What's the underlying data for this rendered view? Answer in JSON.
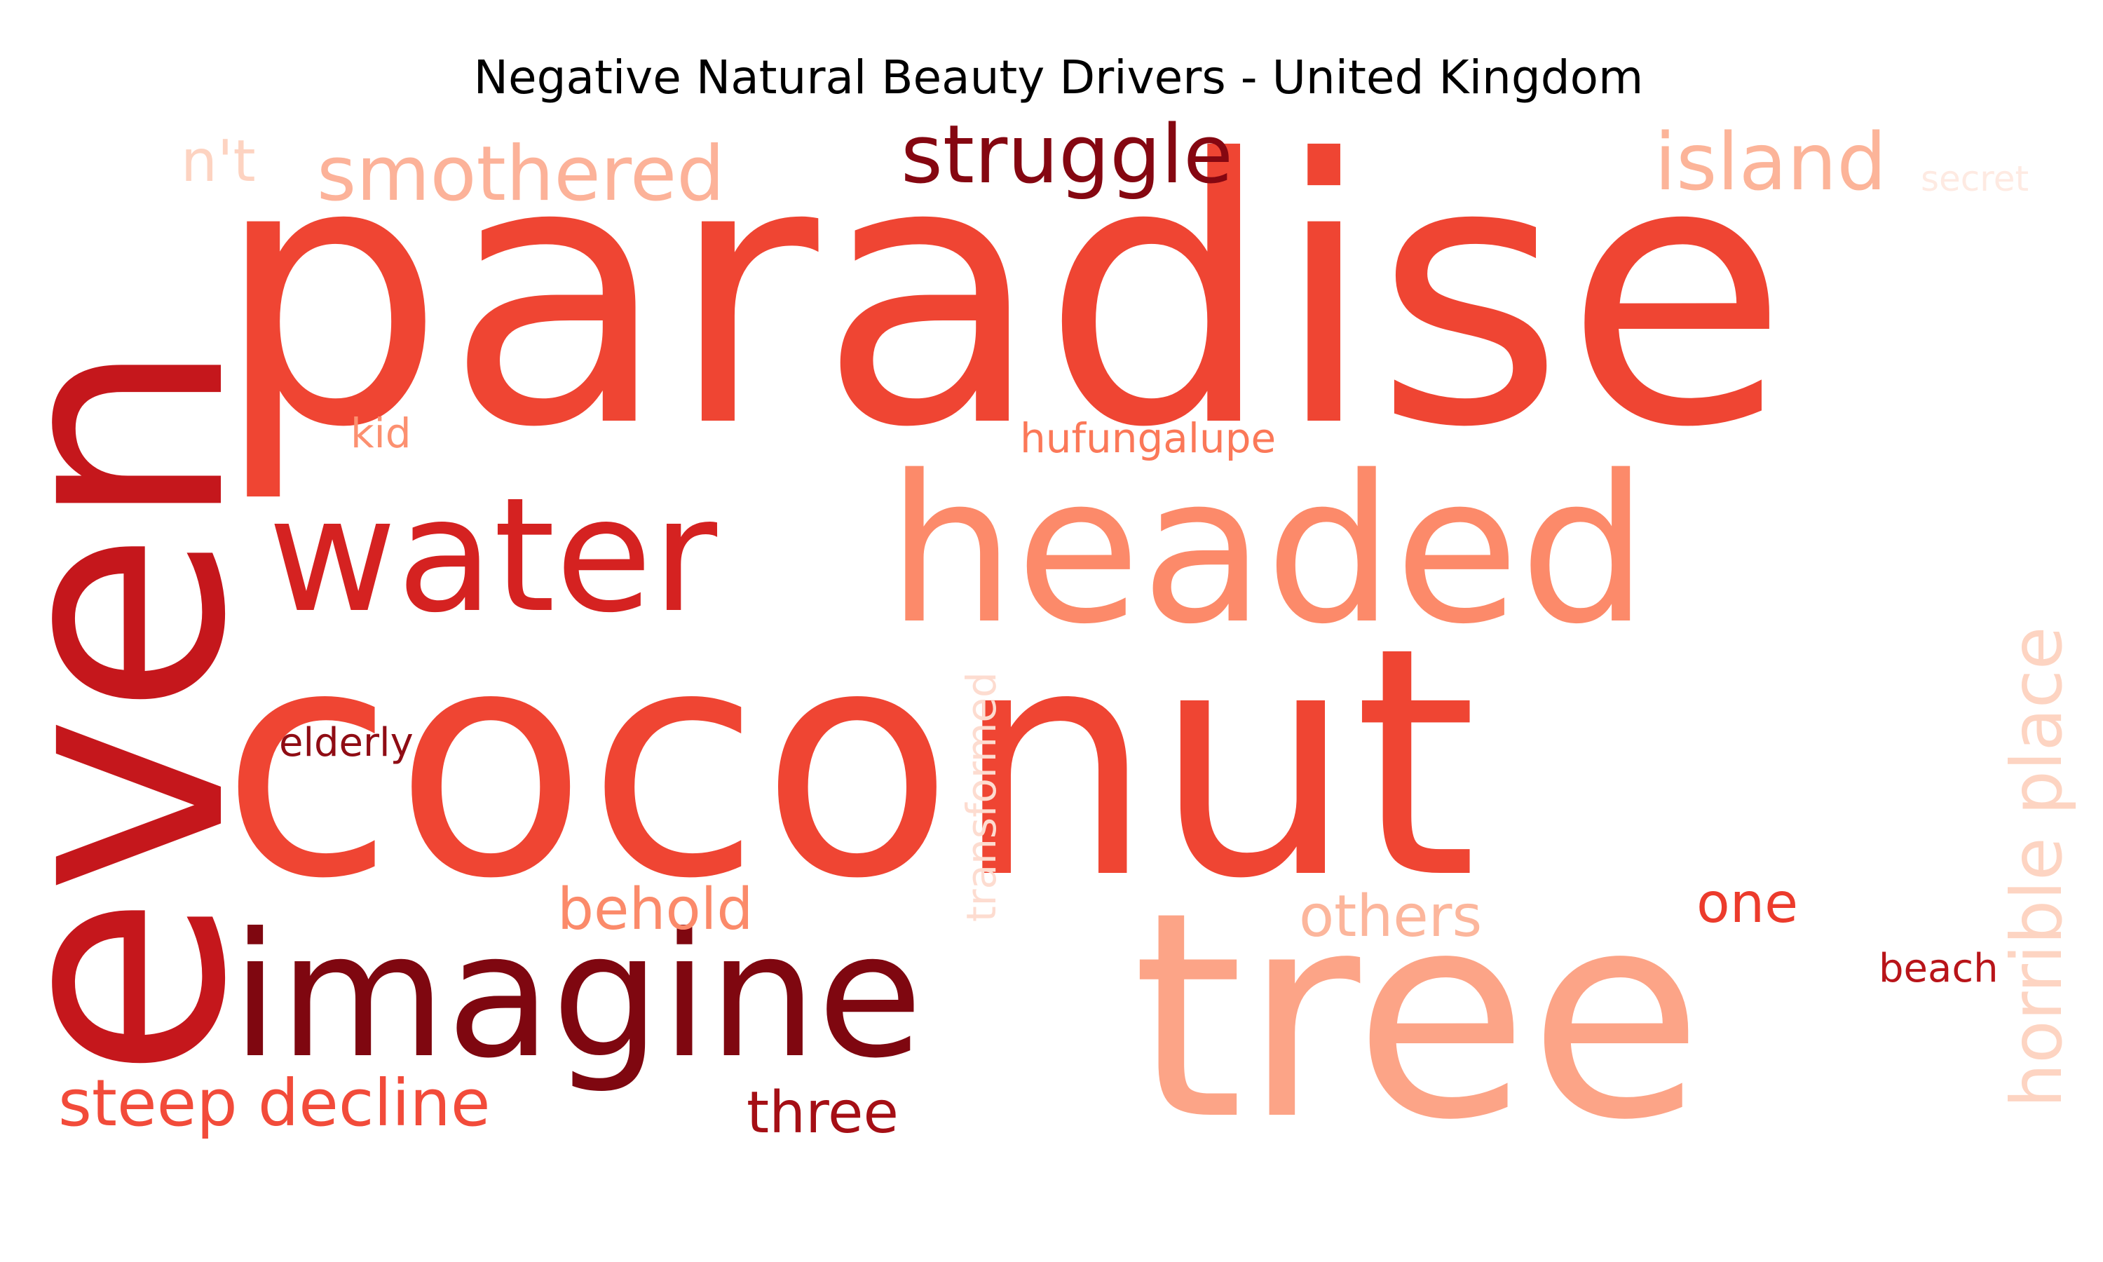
{
  "title": "Negative Natural Beauty Drivers - United Kingdom",
  "words": [
    {
      "text": "paradise",
      "color": "#ef4533"
    },
    {
      "text": "coconut",
      "color": "#ef4533"
    },
    {
      "text": "even",
      "color": "#c5171c"
    },
    {
      "text": "tree",
      "color": "#fca487"
    },
    {
      "text": "headed",
      "color": "#fc8a6a"
    },
    {
      "text": "water",
      "color": "#d52221"
    },
    {
      "text": "imagine",
      "color": "#7f0710"
    },
    {
      "text": "struggle",
      "color": "#850711"
    },
    {
      "text": "smothered",
      "color": "#fcb299"
    },
    {
      "text": "island",
      "color": "#fcb499"
    },
    {
      "text": "n't",
      "color": "#fdd3c1"
    },
    {
      "text": "secret",
      "color": "#feeae2"
    },
    {
      "text": "kid",
      "color": "#fc9070"
    },
    {
      "text": "hufungalupe",
      "color": "#fb7858"
    },
    {
      "text": "elderly",
      "color": "#8f0c14"
    },
    {
      "text": "transformed",
      "color": "#fddcd0"
    },
    {
      "text": "horrible place",
      "color": "#fdd4c2"
    },
    {
      "text": "behold",
      "color": "#fb8a6a"
    },
    {
      "text": "others",
      "color": "#fcb69c"
    },
    {
      "text": "one",
      "color": "#ec3b2c"
    },
    {
      "text": "beach",
      "color": "#b81419"
    },
    {
      "text": "steep decline",
      "color": "#f24b3a"
    },
    {
      "text": "three",
      "color": "#a50f15"
    }
  ]
}
